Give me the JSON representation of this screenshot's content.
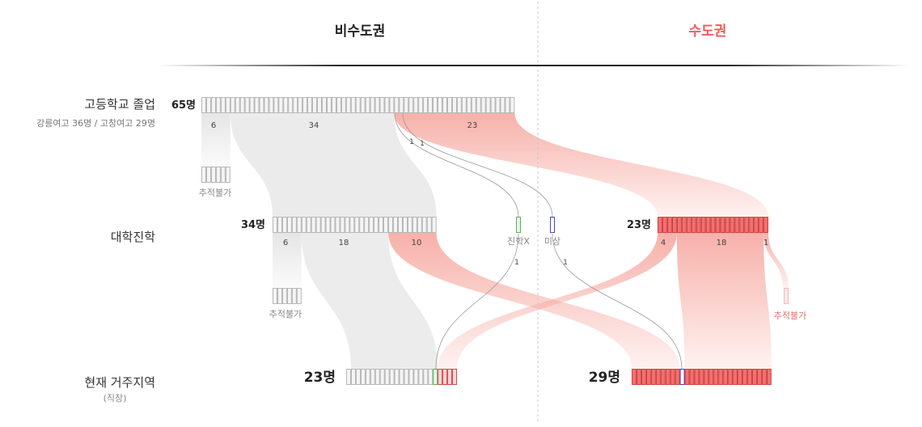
{
  "headers": {
    "non_capital": "비수도권",
    "capital": "수도권"
  },
  "colors": {
    "gray_fill": "#f4f4f4",
    "gray_stroke": "#a8a8a8",
    "red_fill": "#f27070",
    "red_stroke": "#c42a2a",
    "green_stroke": "#3a9a3a",
    "blue_stroke": "#1a1ab0",
    "capital_header": "#f35a5a",
    "divider": "#c8c8c8"
  },
  "rows": {
    "highschool": {
      "label": "고등학교 졸업",
      "sub": "강릉여고 36명 / 고창여고 29명"
    },
    "university": {
      "label": "대학진학"
    },
    "residence": {
      "label": "현재 거주지역",
      "sub": "(직장)"
    }
  },
  "nodes": {
    "hs_total": {
      "count": "65명",
      "value": 65
    },
    "hs_untracked": {
      "label": "추적불가",
      "value": 6
    },
    "uni_noncap": {
      "count": "34명",
      "value": 34
    },
    "uni_capital": {
      "count": "23명",
      "value": 23
    },
    "uni_noncap_untracked": {
      "label": "추적불가",
      "value": 6
    },
    "uni_capital_untracked": {
      "label": "추적불가",
      "value": 1
    },
    "no_college": {
      "label": "진학X",
      "value": 1
    },
    "unknown": {
      "label": "미상",
      "value": 1
    },
    "res_noncap": {
      "count": "23명",
      "value": 23
    },
    "res_capital": {
      "count": "29명",
      "value": 29
    }
  },
  "flow_labels": {
    "hs_to_untracked": "6",
    "hs_to_uni_noncap": "34",
    "hs_to_uni_capital": "23",
    "hs_to_no_college": "1",
    "hs_to_unknown": "1",
    "uninc_to_untracked": "6",
    "uninc_stay": "18",
    "uninc_to_capital": "10",
    "unicap_to_noncap": "4",
    "unicap_stay": "18",
    "unicap_untracked": "1",
    "nocollege_to_noncap": "1",
    "unknown_to_capital": "1"
  }
}
